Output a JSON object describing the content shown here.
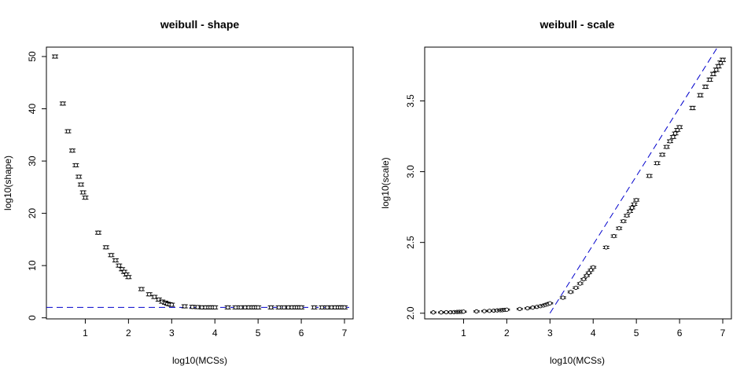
{
  "chart_data": [
    {
      "type": "scatter",
      "title": "weibull - shape",
      "xlabel": "log10(MCSs)",
      "ylabel": "log10(shape)",
      "xlim": [
        0.1,
        7.2
      ],
      "ylim": [
        -0.2,
        51.8
      ],
      "xticks": [
        1,
        2,
        3,
        4,
        5,
        6,
        7
      ],
      "yticks": [
        0,
        10,
        20,
        30,
        40,
        50
      ],
      "grid": false,
      "reference_line": {
        "kind": "horizontal",
        "y": 2,
        "color": "#0000cc",
        "style": "dashed"
      },
      "points": [
        {
          "x": 0.3,
          "y": 50.0,
          "err": 0.3
        },
        {
          "x": 0.48,
          "y": 41.0,
          "err": 0.3
        },
        {
          "x": 0.6,
          "y": 35.7,
          "err": 0.3
        },
        {
          "x": 0.7,
          "y": 32.0,
          "err": 0.3
        },
        {
          "x": 0.78,
          "y": 29.2,
          "err": 0.3
        },
        {
          "x": 0.85,
          "y": 27.0,
          "err": 0.3
        },
        {
          "x": 0.9,
          "y": 25.5,
          "err": 0.3
        },
        {
          "x": 0.95,
          "y": 24.0,
          "err": 0.3
        },
        {
          "x": 1.0,
          "y": 23.0,
          "err": 0.3
        },
        {
          "x": 1.3,
          "y": 16.3,
          "err": 0.3
        },
        {
          "x": 1.48,
          "y": 13.5,
          "err": 0.3
        },
        {
          "x": 1.6,
          "y": 12.0,
          "err": 0.3
        },
        {
          "x": 1.7,
          "y": 11.0,
          "err": 0.3
        },
        {
          "x": 1.78,
          "y": 10.0,
          "err": 0.3
        },
        {
          "x": 1.85,
          "y": 9.3,
          "err": 0.3
        },
        {
          "x": 1.9,
          "y": 8.8,
          "err": 0.3
        },
        {
          "x": 1.95,
          "y": 8.3,
          "err": 0.3
        },
        {
          "x": 2.0,
          "y": 7.8,
          "err": 0.3
        },
        {
          "x": 2.3,
          "y": 5.5,
          "err": 0.3
        },
        {
          "x": 2.48,
          "y": 4.5,
          "err": 0.3
        },
        {
          "x": 2.6,
          "y": 4.0,
          "err": 0.3
        },
        {
          "x": 2.7,
          "y": 3.5,
          "err": 0.3
        },
        {
          "x": 2.78,
          "y": 3.1,
          "err": 0.3
        },
        {
          "x": 2.85,
          "y": 2.9,
          "err": 0.3
        },
        {
          "x": 2.9,
          "y": 2.7,
          "err": 0.3
        },
        {
          "x": 2.95,
          "y": 2.6,
          "err": 0.3
        },
        {
          "x": 3.0,
          "y": 2.5,
          "err": 0.3
        },
        {
          "x": 3.3,
          "y": 2.2,
          "err": 0.3
        },
        {
          "x": 3.48,
          "y": 2.1,
          "err": 0.3
        },
        {
          "x": 3.6,
          "y": 2.05,
          "err": 0.3
        },
        {
          "x": 3.7,
          "y": 2.0,
          "err": 0.3
        },
        {
          "x": 3.78,
          "y": 2.0,
          "err": 0.3
        },
        {
          "x": 3.85,
          "y": 2.0,
          "err": 0.3
        },
        {
          "x": 3.9,
          "y": 2.0,
          "err": 0.3
        },
        {
          "x": 3.95,
          "y": 2.0,
          "err": 0.3
        },
        {
          "x": 4.0,
          "y": 2.0,
          "err": 0.3
        },
        {
          "x": 4.3,
          "y": 2.0,
          "err": 0.3
        },
        {
          "x": 4.48,
          "y": 2.0,
          "err": 0.3
        },
        {
          "x": 4.6,
          "y": 2.0,
          "err": 0.3
        },
        {
          "x": 4.7,
          "y": 2.0,
          "err": 0.3
        },
        {
          "x": 4.78,
          "y": 2.0,
          "err": 0.3
        },
        {
          "x": 4.85,
          "y": 2.0,
          "err": 0.3
        },
        {
          "x": 4.9,
          "y": 2.0,
          "err": 0.3
        },
        {
          "x": 4.95,
          "y": 2.0,
          "err": 0.3
        },
        {
          "x": 5.0,
          "y": 2.0,
          "err": 0.3
        },
        {
          "x": 5.3,
          "y": 2.0,
          "err": 0.3
        },
        {
          "x": 5.48,
          "y": 2.0,
          "err": 0.3
        },
        {
          "x": 5.6,
          "y": 2.0,
          "err": 0.3
        },
        {
          "x": 5.7,
          "y": 2.0,
          "err": 0.3
        },
        {
          "x": 5.78,
          "y": 2.0,
          "err": 0.3
        },
        {
          "x": 5.85,
          "y": 2.0,
          "err": 0.3
        },
        {
          "x": 5.9,
          "y": 2.0,
          "err": 0.3
        },
        {
          "x": 5.95,
          "y": 2.0,
          "err": 0.3
        },
        {
          "x": 6.0,
          "y": 2.0,
          "err": 0.3
        },
        {
          "x": 6.3,
          "y": 2.0,
          "err": 0.3
        },
        {
          "x": 6.48,
          "y": 2.0,
          "err": 0.3
        },
        {
          "x": 6.6,
          "y": 2.0,
          "err": 0.3
        },
        {
          "x": 6.7,
          "y": 2.0,
          "err": 0.3
        },
        {
          "x": 6.78,
          "y": 2.0,
          "err": 0.3
        },
        {
          "x": 6.85,
          "y": 2.0,
          "err": 0.3
        },
        {
          "x": 6.9,
          "y": 2.0,
          "err": 0.3
        },
        {
          "x": 6.95,
          "y": 2.0,
          "err": 0.3
        },
        {
          "x": 7.0,
          "y": 2.0,
          "err": 0.3
        }
      ]
    },
    {
      "type": "scatter",
      "title": "weibull - scale",
      "xlabel": "log10(MCSs)",
      "ylabel": "log10(scale)",
      "xlim": [
        0.1,
        7.2
      ],
      "ylim": [
        1.96,
        3.88
      ],
      "xticks": [
        1,
        2,
        3,
        4,
        5,
        6,
        7
      ],
      "yticks": [
        2.0,
        2.5,
        3.0,
        3.5
      ],
      "grid": false,
      "reference_line": {
        "kind": "line",
        "x0": 3.0,
        "y0": 2.0,
        "x1": 6.88,
        "y1": 3.88,
        "color": "#0000cc",
        "style": "dashed"
      },
      "points": [
        {
          "x": 0.3,
          "y": 2.006,
          "err": 0.004
        },
        {
          "x": 0.48,
          "y": 2.006,
          "err": 0.004
        },
        {
          "x": 0.6,
          "y": 2.007,
          "err": 0.004
        },
        {
          "x": 0.7,
          "y": 2.007,
          "err": 0.004
        },
        {
          "x": 0.78,
          "y": 2.008,
          "err": 0.004
        },
        {
          "x": 0.85,
          "y": 2.009,
          "err": 0.004
        },
        {
          "x": 0.9,
          "y": 2.01,
          "err": 0.004
        },
        {
          "x": 0.95,
          "y": 2.01,
          "err": 0.004
        },
        {
          "x": 1.0,
          "y": 2.011,
          "err": 0.004
        },
        {
          "x": 1.3,
          "y": 2.013,
          "err": 0.004
        },
        {
          "x": 1.48,
          "y": 2.015,
          "err": 0.004
        },
        {
          "x": 1.6,
          "y": 2.017,
          "err": 0.004
        },
        {
          "x": 1.7,
          "y": 2.018,
          "err": 0.004
        },
        {
          "x": 1.78,
          "y": 2.02,
          "err": 0.004
        },
        {
          "x": 1.85,
          "y": 2.021,
          "err": 0.004
        },
        {
          "x": 1.9,
          "y": 2.022,
          "err": 0.004
        },
        {
          "x": 1.95,
          "y": 2.024,
          "err": 0.004
        },
        {
          "x": 2.0,
          "y": 2.025,
          "err": 0.004
        },
        {
          "x": 2.3,
          "y": 2.03,
          "err": 0.004
        },
        {
          "x": 2.48,
          "y": 2.035,
          "err": 0.004
        },
        {
          "x": 2.6,
          "y": 2.04,
          "err": 0.004
        },
        {
          "x": 2.7,
          "y": 2.045,
          "err": 0.004
        },
        {
          "x": 2.78,
          "y": 2.05,
          "err": 0.004
        },
        {
          "x": 2.85,
          "y": 2.055,
          "err": 0.004
        },
        {
          "x": 2.9,
          "y": 2.06,
          "err": 0.004
        },
        {
          "x": 2.95,
          "y": 2.065,
          "err": 0.004
        },
        {
          "x": 3.0,
          "y": 2.07,
          "err": 0.004
        },
        {
          "x": 3.3,
          "y": 2.11,
          "err": 0.006
        },
        {
          "x": 3.48,
          "y": 2.15,
          "err": 0.006
        },
        {
          "x": 3.6,
          "y": 2.18,
          "err": 0.006
        },
        {
          "x": 3.7,
          "y": 2.21,
          "err": 0.006
        },
        {
          "x": 3.78,
          "y": 2.24,
          "err": 0.006
        },
        {
          "x": 3.85,
          "y": 2.265,
          "err": 0.006
        },
        {
          "x": 3.9,
          "y": 2.285,
          "err": 0.006
        },
        {
          "x": 3.95,
          "y": 2.305,
          "err": 0.006
        },
        {
          "x": 4.0,
          "y": 2.325,
          "err": 0.006
        },
        {
          "x": 4.3,
          "y": 2.465,
          "err": 0.008
        },
        {
          "x": 4.48,
          "y": 2.545,
          "err": 0.008
        },
        {
          "x": 4.6,
          "y": 2.6,
          "err": 0.008
        },
        {
          "x": 4.7,
          "y": 2.65,
          "err": 0.008
        },
        {
          "x": 4.78,
          "y": 2.69,
          "err": 0.008
        },
        {
          "x": 4.85,
          "y": 2.72,
          "err": 0.008
        },
        {
          "x": 4.9,
          "y": 2.745,
          "err": 0.008
        },
        {
          "x": 4.95,
          "y": 2.77,
          "err": 0.008
        },
        {
          "x": 5.0,
          "y": 2.8,
          "err": 0.008
        },
        {
          "x": 5.3,
          "y": 2.97,
          "err": 0.01
        },
        {
          "x": 5.48,
          "y": 3.06,
          "err": 0.01
        },
        {
          "x": 5.6,
          "y": 3.12,
          "err": 0.01
        },
        {
          "x": 5.7,
          "y": 3.175,
          "err": 0.01
        },
        {
          "x": 5.78,
          "y": 3.215,
          "err": 0.01
        },
        {
          "x": 5.85,
          "y": 3.245,
          "err": 0.01
        },
        {
          "x": 5.9,
          "y": 3.27,
          "err": 0.01
        },
        {
          "x": 5.95,
          "y": 3.295,
          "err": 0.01
        },
        {
          "x": 6.0,
          "y": 3.315,
          "err": 0.01
        },
        {
          "x": 6.3,
          "y": 3.45,
          "err": 0.012
        },
        {
          "x": 6.48,
          "y": 3.54,
          "err": 0.012
        },
        {
          "x": 6.6,
          "y": 3.6,
          "err": 0.012
        },
        {
          "x": 6.7,
          "y": 3.65,
          "err": 0.012
        },
        {
          "x": 6.78,
          "y": 3.69,
          "err": 0.012
        },
        {
          "x": 6.85,
          "y": 3.72,
          "err": 0.012
        },
        {
          "x": 6.9,
          "y": 3.745,
          "err": 0.012
        },
        {
          "x": 6.95,
          "y": 3.77,
          "err": 0.012
        },
        {
          "x": 7.0,
          "y": 3.79,
          "err": 0.012
        }
      ]
    }
  ]
}
